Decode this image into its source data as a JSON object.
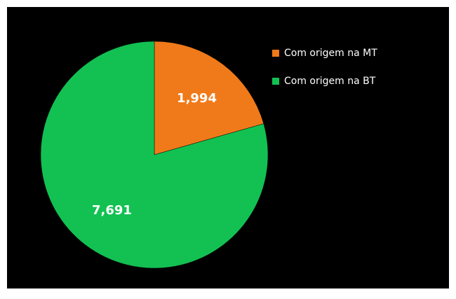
{
  "chart_data": {
    "type": "pie",
    "categories": [
      "Com origem na MT",
      "Com origem na BT"
    ],
    "values": [
      1994,
      7691
    ],
    "value_labels": [
      "1,994",
      "7,691"
    ],
    "colors": [
      "#f07a1a",
      "#12c152"
    ],
    "legend": "top-right"
  }
}
